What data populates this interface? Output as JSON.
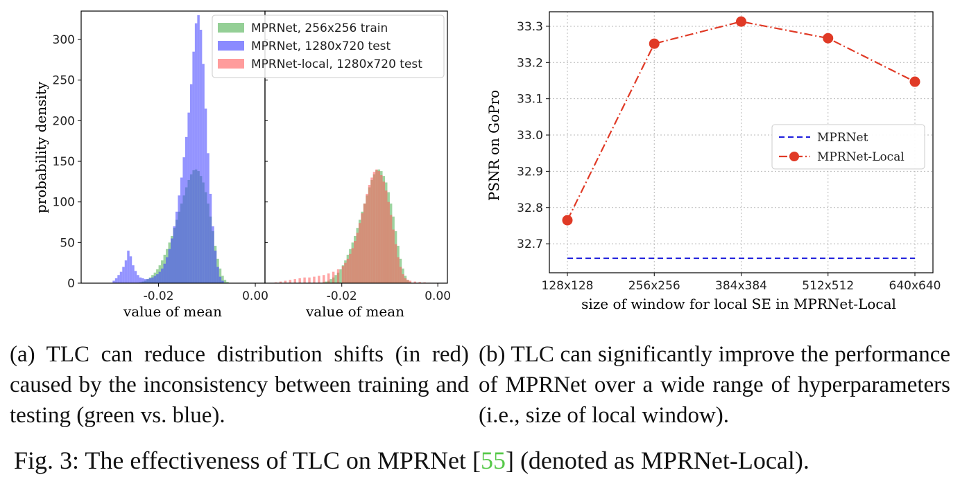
{
  "chart_data": [
    {
      "type": "histogram",
      "panel": "left",
      "ylabel": "probability density",
      "xlabel": "value of mean",
      "yticks": [
        0,
        50,
        100,
        150,
        200,
        250,
        300
      ],
      "xticks": [
        "-0.02",
        "0.00"
      ],
      "xlim": [
        -0.036,
        0.002
      ],
      "ylim": [
        0,
        335
      ],
      "colors": {
        "train": "#4caf50",
        "test": "#3d3dff",
        "local": "#ff5a5a"
      },
      "series": [
        {
          "name": "MPRNet, 256x256 train",
          "color": "#4caf50",
          "bins": [
            [
              -0.0245,
              0.5
            ],
            [
              -0.024,
              1
            ],
            [
              -0.0235,
              2
            ],
            [
              -0.023,
              3
            ],
            [
              -0.0225,
              5
            ],
            [
              -0.022,
              7
            ],
            [
              -0.0215,
              10
            ],
            [
              -0.021,
              13
            ],
            [
              -0.0205,
              17
            ],
            [
              -0.02,
              22
            ],
            [
              -0.0195,
              28
            ],
            [
              -0.019,
              35
            ],
            [
              -0.0185,
              42
            ],
            [
              -0.018,
              50
            ],
            [
              -0.0175,
              58
            ],
            [
              -0.017,
              68
            ],
            [
              -0.0165,
              78
            ],
            [
              -0.016,
              88
            ],
            [
              -0.0155,
              98
            ],
            [
              -0.015,
              108
            ],
            [
              -0.0145,
              118
            ],
            [
              -0.014,
              127
            ],
            [
              -0.0135,
              134
            ],
            [
              -0.013,
              139
            ],
            [
              -0.0125,
              140
            ],
            [
              -0.012,
              138
            ],
            [
              -0.0115,
              132
            ],
            [
              -0.011,
              124
            ],
            [
              -0.0105,
              112
            ],
            [
              -0.01,
              98
            ],
            [
              -0.0095,
              82
            ],
            [
              -0.009,
              64
            ],
            [
              -0.0085,
              46
            ],
            [
              -0.008,
              30
            ],
            [
              -0.0075,
              18
            ],
            [
              -0.007,
              9
            ],
            [
              -0.0065,
              4
            ],
            [
              -0.006,
              1.5
            ]
          ]
        },
        {
          "name": "MPRNet, 1280x720 test",
          "color": "#3d3dff",
          "bins": [
            [
              -0.0295,
              3
            ],
            [
              -0.029,
              6
            ],
            [
              -0.0285,
              10
            ],
            [
              -0.028,
              14
            ],
            [
              -0.0275,
              20
            ],
            [
              -0.027,
              28
            ],
            [
              -0.0265,
              40
            ],
            [
              -0.026,
              33
            ],
            [
              -0.0255,
              22
            ],
            [
              -0.025,
              15
            ],
            [
              -0.0245,
              10
            ],
            [
              -0.024,
              7
            ],
            [
              -0.0235,
              6
            ],
            [
              -0.023,
              5
            ],
            [
              -0.0225,
              5
            ],
            [
              -0.022,
              6
            ],
            [
              -0.0215,
              7
            ],
            [
              -0.021,
              9
            ],
            [
              -0.0205,
              11
            ],
            [
              -0.02,
              14
            ],
            [
              -0.0195,
              18
            ],
            [
              -0.019,
              24
            ],
            [
              -0.0185,
              32
            ],
            [
              -0.018,
              42
            ],
            [
              -0.0175,
              55
            ],
            [
              -0.017,
              70
            ],
            [
              -0.0165,
              88
            ],
            [
              -0.016,
              108
            ],
            [
              -0.0155,
              130
            ],
            [
              -0.015,
              155
            ],
            [
              -0.0145,
              180
            ],
            [
              -0.014,
              210
            ],
            [
              -0.0135,
              245
            ],
            [
              -0.013,
              285
            ],
            [
              -0.0125,
              320
            ],
            [
              -0.012,
              330
            ],
            [
              -0.0115,
              312
            ],
            [
              -0.011,
              270
            ],
            [
              -0.0105,
              215
            ],
            [
              -0.01,
              160
            ],
            [
              -0.0095,
              110
            ],
            [
              -0.009,
              70
            ],
            [
              -0.0085,
              40
            ],
            [
              -0.008,
              20
            ],
            [
              -0.0075,
              8
            ],
            [
              -0.007,
              3
            ]
          ]
        }
      ],
      "legend": [
        "MPRNet, 256x256 train",
        "MPRNet, 1280x720 test",
        "MPRNet-local, 1280x720 test"
      ]
    },
    {
      "type": "histogram",
      "panel": "middle",
      "xlabel": "value of mean",
      "xticks": [
        "-0.02",
        "0.00"
      ],
      "xlim": [
        -0.036,
        0.002
      ],
      "ylim": [
        0,
        335
      ],
      "series": [
        {
          "name": "MPRNet, 256x256 train",
          "color": "#4caf50",
          "bins": [
            [
              -0.0245,
              0.5
            ],
            [
              -0.024,
              1
            ],
            [
              -0.0235,
              2
            ],
            [
              -0.023,
              3
            ],
            [
              -0.0225,
              5
            ],
            [
              -0.022,
              7
            ],
            [
              -0.0215,
              10
            ],
            [
              -0.021,
              13
            ],
            [
              -0.0205,
              17
            ],
            [
              -0.02,
              22
            ],
            [
              -0.0195,
              28
            ],
            [
              -0.019,
              35
            ],
            [
              -0.0185,
              42
            ],
            [
              -0.018,
              50
            ],
            [
              -0.0175,
              58
            ],
            [
              -0.017,
              68
            ],
            [
              -0.0165,
              78
            ],
            [
              -0.016,
              88
            ],
            [
              -0.0155,
              98
            ],
            [
              -0.015,
              108
            ],
            [
              -0.0145,
              118
            ],
            [
              -0.014,
              127
            ],
            [
              -0.0135,
              134
            ],
            [
              -0.013,
              139
            ],
            [
              -0.0125,
              140
            ],
            [
              -0.012,
              138
            ],
            [
              -0.0115,
              132
            ],
            [
              -0.011,
              124
            ],
            [
              -0.0105,
              112
            ],
            [
              -0.01,
              98
            ],
            [
              -0.0095,
              82
            ],
            [
              -0.009,
              64
            ],
            [
              -0.0085,
              46
            ],
            [
              -0.008,
              30
            ],
            [
              -0.0075,
              18
            ],
            [
              -0.007,
              9
            ],
            [
              -0.0065,
              4
            ],
            [
              -0.006,
              1.5
            ]
          ]
        },
        {
          "name": "MPRNet-local, 1280x720 test",
          "color": "#ff5a5a",
          "bins": [
            [
              -0.034,
              1
            ],
            [
              -0.033,
              2
            ],
            [
              -0.032,
              3
            ],
            [
              -0.031,
              4
            ],
            [
              -0.03,
              5
            ],
            [
              -0.029,
              6
            ],
            [
              -0.028,
              7
            ],
            [
              -0.027,
              7
            ],
            [
              -0.026,
              8
            ],
            [
              -0.025,
              9
            ],
            [
              -0.024,
              10
            ],
            [
              -0.023,
              12
            ],
            [
              -0.022,
              14
            ],
            [
              -0.021,
              17
            ],
            [
              -0.02,
              21
            ],
            [
              -0.0195,
              25
            ],
            [
              -0.019,
              30
            ],
            [
              -0.0185,
              36
            ],
            [
              -0.018,
              43
            ],
            [
              -0.0175,
              52
            ],
            [
              -0.017,
              62
            ],
            [
              -0.0165,
              74
            ],
            [
              -0.016,
              86
            ],
            [
              -0.0155,
              98
            ],
            [
              -0.015,
              110
            ],
            [
              -0.0145,
              121
            ],
            [
              -0.014,
              130
            ],
            [
              -0.0135,
              137
            ],
            [
              -0.013,
              140
            ],
            [
              -0.0125,
              138
            ],
            [
              -0.012,
              133
            ],
            [
              -0.0115,
              125
            ],
            [
              -0.011,
              114
            ],
            [
              -0.0105,
              100
            ],
            [
              -0.01,
              84
            ],
            [
              -0.0095,
              66
            ],
            [
              -0.009,
              48
            ],
            [
              -0.0085,
              32
            ],
            [
              -0.008,
              20
            ],
            [
              -0.0075,
              11
            ],
            [
              -0.007,
              6
            ],
            [
              -0.0065,
              4
            ],
            [
              -0.006,
              3
            ],
            [
              -0.005,
              2
            ],
            [
              -0.004,
              1.5
            ],
            [
              -0.003,
              1
            ],
            [
              -0.002,
              0.5
            ]
          ]
        }
      ]
    },
    {
      "type": "line",
      "panel": "right",
      "ylabel": "PSNR on GoPro",
      "xlabel": "size of window for local SE in MPRNet-Local",
      "categories": [
        "128x128",
        "256x256",
        "384x384",
        "512x512",
        "640x640"
      ],
      "yticks": [
        "32.7",
        "32.8",
        "32.9",
        "33.0",
        "33.1",
        "33.2",
        "33.3"
      ],
      "ylim": [
        32.62,
        33.34
      ],
      "grid": true,
      "legend_position": "center-right",
      "series": [
        {
          "name": "MPRNet",
          "style": "dashed",
          "color": "#2222dd",
          "values": [
            32.66,
            32.66,
            32.66,
            32.66,
            32.66
          ]
        },
        {
          "name": "MPRNet-Local",
          "style": "dashdot-markers",
          "color": "#e03a26",
          "values": [
            32.765,
            33.252,
            33.313,
            33.267,
            33.147
          ]
        }
      ]
    }
  ],
  "captions": {
    "a": "(a) TLC can reduce distribution shifts (in red) caused by the inconsistency between training and testing (green vs. blue).",
    "b": "(b) TLC can significantly improve the performance of MPRNet over a wide range of hyperparameters (i.e., size of local window).",
    "figure_prefix": "Fig. 3: The effectiveness of TLC on MPRNet ",
    "figure_cite": "55",
    "figure_suffix": " (denoted as MPRNet-Local)."
  }
}
